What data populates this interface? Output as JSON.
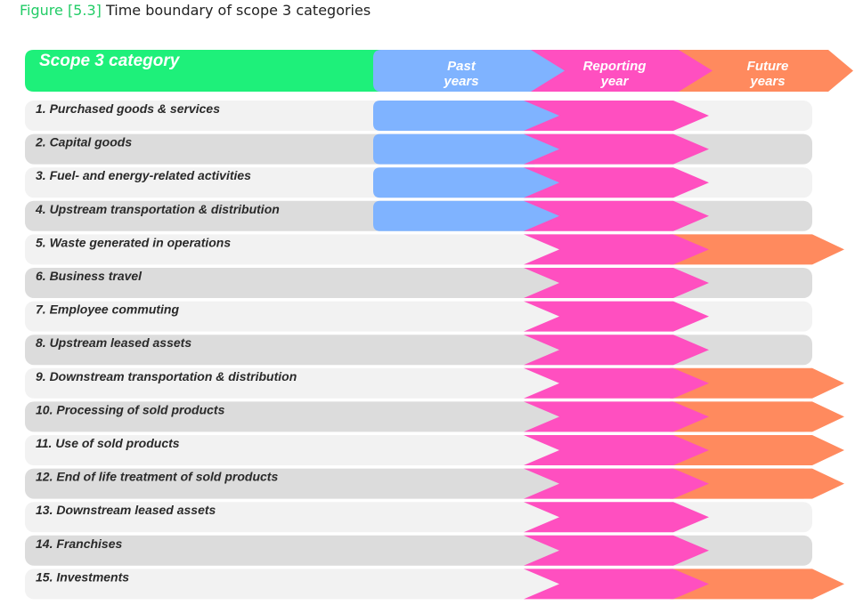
{
  "figure": {
    "number": "Figure [5.3]",
    "title": "Time boundary of scope 3 categories"
  },
  "header": {
    "category_label": "Scope 3 category",
    "columns": [
      {
        "key": "past",
        "line1": "Past",
        "line2": "years",
        "color": "#7fb3ff"
      },
      {
        "key": "reporting",
        "line1": "Reporting",
        "line2": "year",
        "color": "#ff4fc0"
      },
      {
        "key": "future",
        "line1": "Future",
        "line2": "years",
        "color": "#ff8a5e"
      }
    ],
    "category_color": "#1ef07a"
  },
  "row_colors": {
    "light": "#f2f2f2",
    "dark": "#dcdcdc"
  },
  "rows": [
    {
      "label": "1. Purchased goods & services",
      "past": true,
      "reporting": true,
      "future": false
    },
    {
      "label": "2. Capital goods",
      "past": true,
      "reporting": true,
      "future": false
    },
    {
      "label": "3. Fuel- and energy-related activities",
      "past": true,
      "reporting": true,
      "future": false
    },
    {
      "label": "4. Upstream transportation & distribution",
      "past": true,
      "reporting": true,
      "future": false
    },
    {
      "label": "5. Waste generated in operations",
      "past": false,
      "reporting": true,
      "future": true
    },
    {
      "label": "6. Business travel",
      "past": false,
      "reporting": true,
      "future": false
    },
    {
      "label": "7. Employee commuting",
      "past": false,
      "reporting": true,
      "future": false
    },
    {
      "label": "8. Upstream leased assets",
      "past": false,
      "reporting": true,
      "future": false
    },
    {
      "label": "9. Downstream transportation & distribution",
      "past": false,
      "reporting": true,
      "future": true
    },
    {
      "label": "10. Processing of  sold products",
      "past": false,
      "reporting": true,
      "future": true
    },
    {
      "label": "11. Use of sold products",
      "past": false,
      "reporting": true,
      "future": true
    },
    {
      "label": "12. End of life treatment of sold products",
      "past": false,
      "reporting": true,
      "future": true
    },
    {
      "label": "13. Downstream leased assets",
      "past": false,
      "reporting": true,
      "future": false
    },
    {
      "label": "14. Franchises",
      "past": false,
      "reporting": true,
      "future": false
    },
    {
      "label": "15. Investments",
      "past": false,
      "reporting": true,
      "future": true
    }
  ]
}
